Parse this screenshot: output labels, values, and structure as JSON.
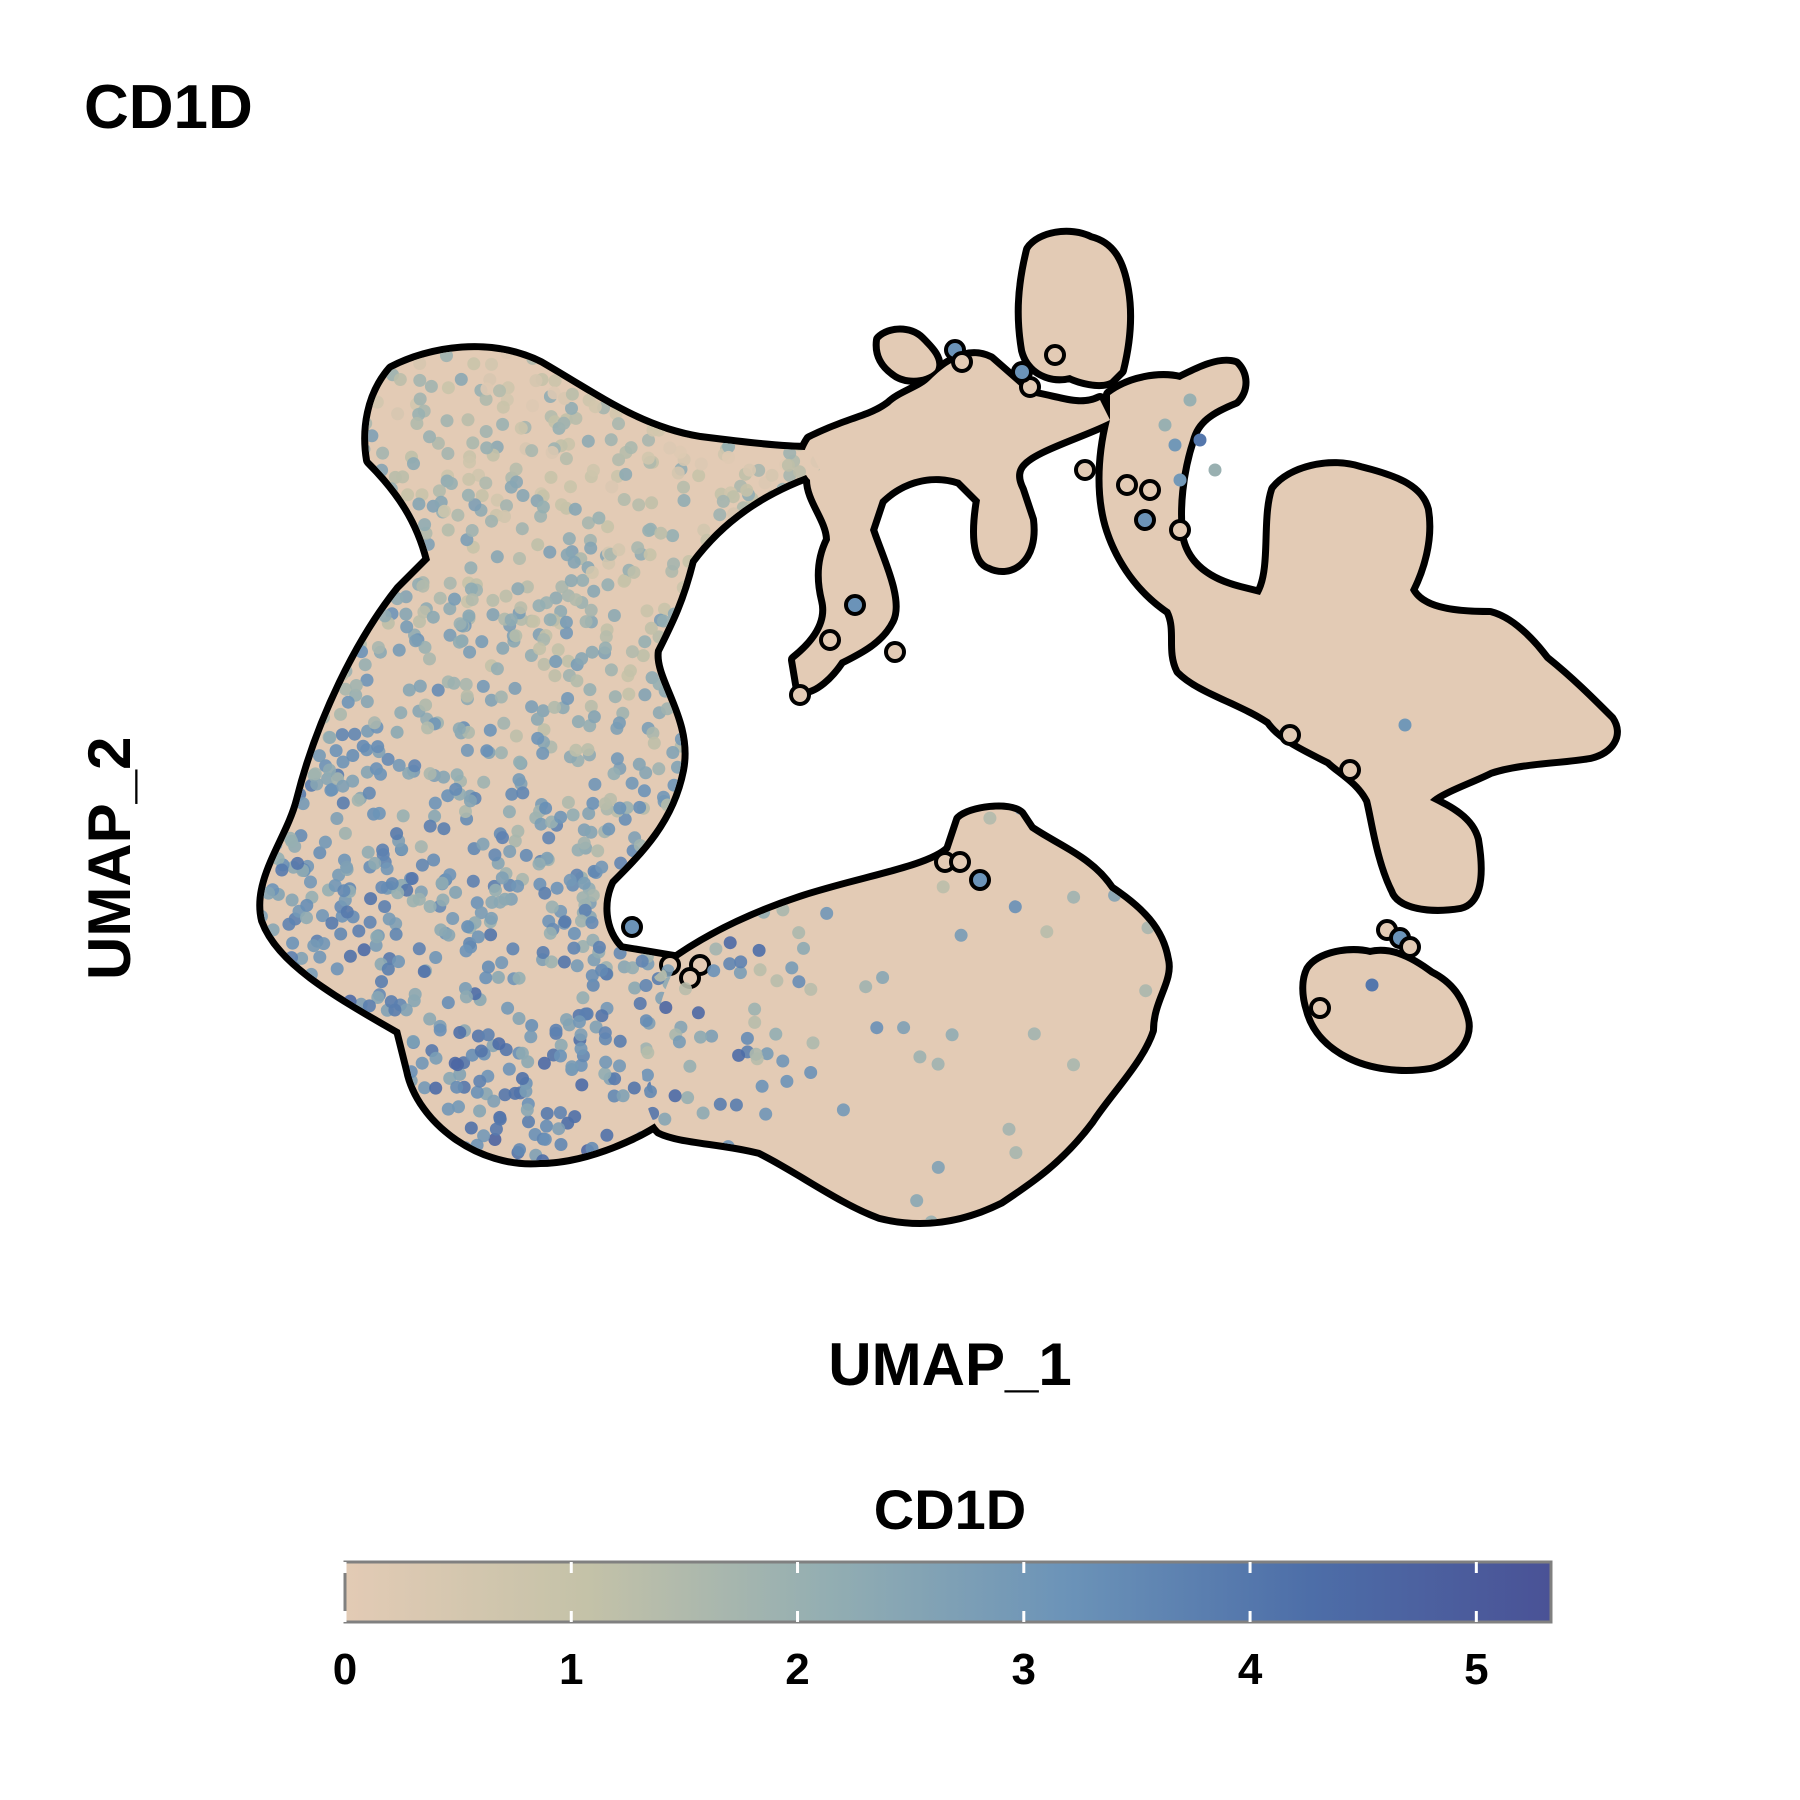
{
  "chart_data": {
    "type": "scatter",
    "title": "CD1D",
    "xlabel": "UMAP_1",
    "ylabel": "UMAP_2",
    "color_feature": "CD1D",
    "grid": false,
    "colorbar": {
      "title": "CD1D",
      "range": [
        0,
        5.33
      ],
      "ticks": [
        0,
        1,
        2,
        3,
        4,
        5
      ],
      "colors": [
        "#e3cbb5",
        "#c4c2a8",
        "#93aeb2",
        "#6b93b8",
        "#4d6ea8",
        "#4a5296"
      ],
      "placement": "bottom"
    },
    "point_outline_color": "#000000",
    "clusters": [
      {
        "name": "left-arch",
        "expression_level": "high"
      },
      {
        "name": "bottom-blob",
        "expression_level": "low"
      },
      {
        "name": "upper-bridge",
        "expression_level": "low"
      },
      {
        "name": "right-star",
        "expression_level": "low"
      },
      {
        "name": "small-island",
        "expression_level": "none"
      }
    ]
  }
}
